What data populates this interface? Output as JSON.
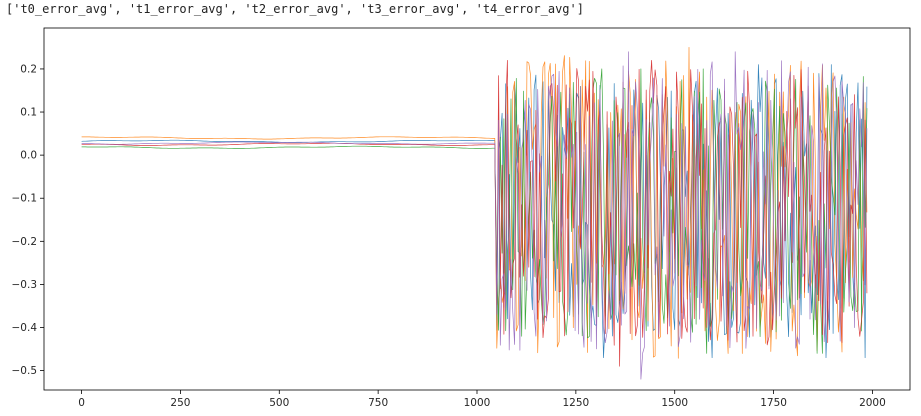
{
  "output_text": "['t0_error_avg', 't1_error_avg', 't2_error_avg', 't3_error_avg', 't4_error_avg']",
  "chart_data": {
    "type": "line",
    "title": "",
    "xlabel": "",
    "ylabel": "",
    "xlim": [
      -95,
      2095
    ],
    "ylim": [
      -0.545,
      0.295
    ],
    "x_ticks": [
      0,
      250,
      500,
      750,
      1000,
      1250,
      1500,
      1750,
      2000
    ],
    "x_tick_labels": [
      "0",
      "250",
      "500",
      "750",
      "1000",
      "1250",
      "1500",
      "1750",
      "2000"
    ],
    "y_ticks": [
      0.2,
      0.1,
      0.0,
      -0.1,
      -0.2,
      -0.3,
      -0.4,
      -0.5
    ],
    "y_tick_labels": [
      "0.2",
      "0.1",
      "0.0",
      "−0.1",
      "−0.2",
      "−0.3",
      "−0.4",
      "−0.5"
    ],
    "grid": false,
    "legend": "none",
    "x_range": [
      0,
      1990
    ],
    "stable_segment_end_x": 1045,
    "series": [
      {
        "color": "#1f77b4",
        "stable_level": 0.032,
        "noisy_range": [
          -0.47,
          0.21
        ]
      },
      {
        "color": "#ff7f0e",
        "stable_level": 0.04,
        "noisy_range": [
          -0.5,
          0.25
        ]
      },
      {
        "color": "#2ca02c",
        "stable_level": 0.018,
        "noisy_range": [
          -0.46,
          0.2
        ]
      },
      {
        "color": "#d62728",
        "stable_level": 0.025,
        "noisy_range": [
          -0.49,
          0.22
        ]
      },
      {
        "color": "#9467bd",
        "stable_level": 0.028,
        "noisy_range": [
          -0.52,
          0.24
        ]
      }
    ]
  }
}
